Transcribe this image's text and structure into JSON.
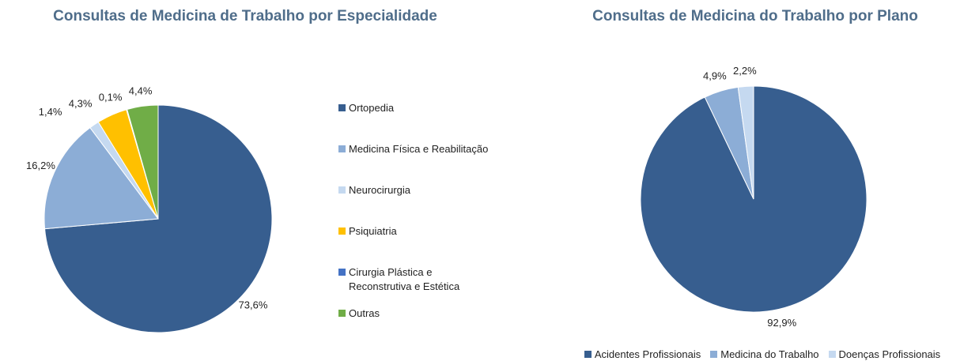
{
  "chart_data": [
    {
      "type": "pie",
      "title": "Consultas de Medicina de Trabalho por Especialidade",
      "categories": [
        "Ortopedia",
        "Medicina Física e Reabilitação",
        "Neurocirurgia",
        "Psiquiatria",
        "Cirurgia Plástica e Reconstrutiva e Estética",
        "Outras"
      ],
      "values": [
        73.6,
        16.2,
        1.4,
        4.3,
        0.1,
        4.4
      ],
      "value_labels": [
        "73,6%",
        "16,2%",
        "1,4%",
        "4,3%",
        "0,1%",
        "4,4%"
      ],
      "colors": [
        "#375e8f",
        "#8cadd6",
        "#c5d9f0",
        "#ffc000",
        "#4472c4",
        "#70ad47"
      ],
      "legend": "right"
    },
    {
      "type": "pie",
      "title": "Consultas de Medicina do Trabalho por Plano",
      "categories": [
        "Acidentes Profissionais",
        "Medicina do Trabalho",
        "Doenças Profissionais"
      ],
      "values": [
        92.9,
        4.9,
        2.2
      ],
      "value_labels": [
        "92,9%",
        "4,9%",
        "2,2%"
      ],
      "colors": [
        "#375e8f",
        "#8cadd6",
        "#c5d9f0"
      ],
      "legend": "bottom"
    }
  ]
}
